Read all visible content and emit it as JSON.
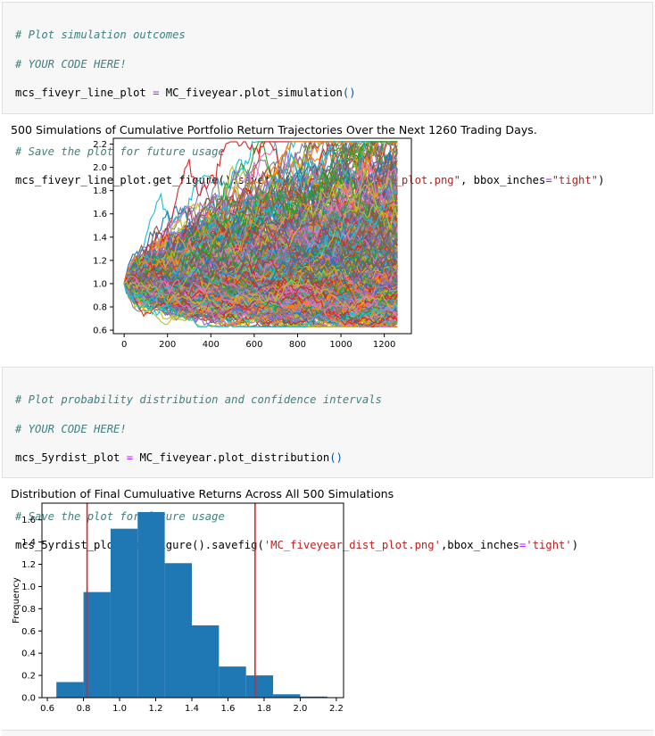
{
  "cell1": {
    "comment1": "# Plot simulation outcomes",
    "comment2": "# YOUR CODE HERE!",
    "line3_var": "mcs_fiveyr_line_plot",
    "line3_op": "=",
    "line3_call": "MC_fiveyear.plot_simulation",
    "line3_parens": "()",
    "comment4": "# Save the plot for future usage",
    "line5_pre": "mcs_fiveyr_line_plot.get_figure().savefig(",
    "line5_str1": "\"MC_fiveyear_sim_plot.png\"",
    "line5_mid": ", bbox_inches",
    "line5_op": "=",
    "line5_str2": "\"tight\"",
    "line5_end": ")"
  },
  "output1": {
    "title": "500 Simulations of Cumulative Portfolio Return Trajectories Over the Next 1260 Trading Days."
  },
  "cell2": {
    "comment1": "# Plot probability distribution and confidence intervals",
    "comment2": "# YOUR CODE HERE!",
    "line3_var": "mcs_5yrdist_plot",
    "line3_op": "=",
    "line3_call": "MC_fiveyear.plot_distribution",
    "line3_parens": "()",
    "comment4": "# Save the plot for future usage",
    "line5_pre": "mcs_5yrdist_plot.get_figure().savefig(",
    "line5_str1": "'MC_fiveyear_dist_plot.png'",
    "line5_mid": ",bbox_inches",
    "line5_op": "=",
    "line5_str2": "'tight'",
    "line5_end": ")"
  },
  "output2": {
    "title": "Distribution of Final Cumuluative Returns Across All 500 Simulations"
  },
  "chart_data": [
    {
      "type": "line",
      "title": "500 Simulations of Cumulative Portfolio Return Trajectories Over the Next 1260 Trading Days.",
      "xlabel": "",
      "ylabel": "",
      "xlim": [
        -50,
        1325
      ],
      "ylim": [
        0.57,
        2.25
      ],
      "xticks": [
        0,
        200,
        400,
        600,
        800,
        1000,
        1200
      ],
      "yticks": [
        0.6,
        0.8,
        1.0,
        1.2,
        1.4,
        1.6,
        1.8,
        2.0,
        2.2
      ],
      "num_series": 500,
      "x_range": [
        0,
        1260
      ],
      "start_value": 1.0,
      "final_min": 0.65,
      "final_max": 2.17,
      "legend": "none",
      "grid": false
    },
    {
      "type": "bar",
      "title": "Distribution of Final Cumuluative Returns Across All 500 Simulations",
      "xlabel": "",
      "ylabel": "Frequency",
      "xlim": [
        0.57,
        2.24
      ],
      "ylim": [
        0,
        1.75
      ],
      "xticks": [
        0.6,
        0.8,
        1.0,
        1.2,
        1.4,
        1.6,
        1.8,
        2.0,
        2.2
      ],
      "yticks": [
        0.0,
        0.2,
        0.4,
        0.6,
        0.8,
        1.0,
        1.2,
        1.4,
        1.6
      ],
      "bins": [
        {
          "x0": 0.65,
          "x1": 0.8,
          "value": 0.14
        },
        {
          "x0": 0.8,
          "x1": 0.95,
          "value": 0.95
        },
        {
          "x0": 0.95,
          "x1": 1.1,
          "value": 1.52
        },
        {
          "x0": 1.1,
          "x1": 1.25,
          "value": 1.67
        },
        {
          "x0": 1.25,
          "x1": 1.4,
          "value": 1.21
        },
        {
          "x0": 1.4,
          "x1": 1.55,
          "value": 0.65
        },
        {
          "x0": 1.55,
          "x1": 1.7,
          "value": 0.28
        },
        {
          "x0": 1.7,
          "x1": 1.85,
          "value": 0.2
        },
        {
          "x0": 1.85,
          "x1": 2.0,
          "value": 0.03
        },
        {
          "x0": 2.0,
          "x1": 2.15,
          "value": 0.01
        }
      ],
      "confidence_lines": [
        0.82,
        1.75
      ],
      "bar_color": "#1f77b4",
      "line_color": "#d62728",
      "legend": "none",
      "grid": false
    }
  ]
}
